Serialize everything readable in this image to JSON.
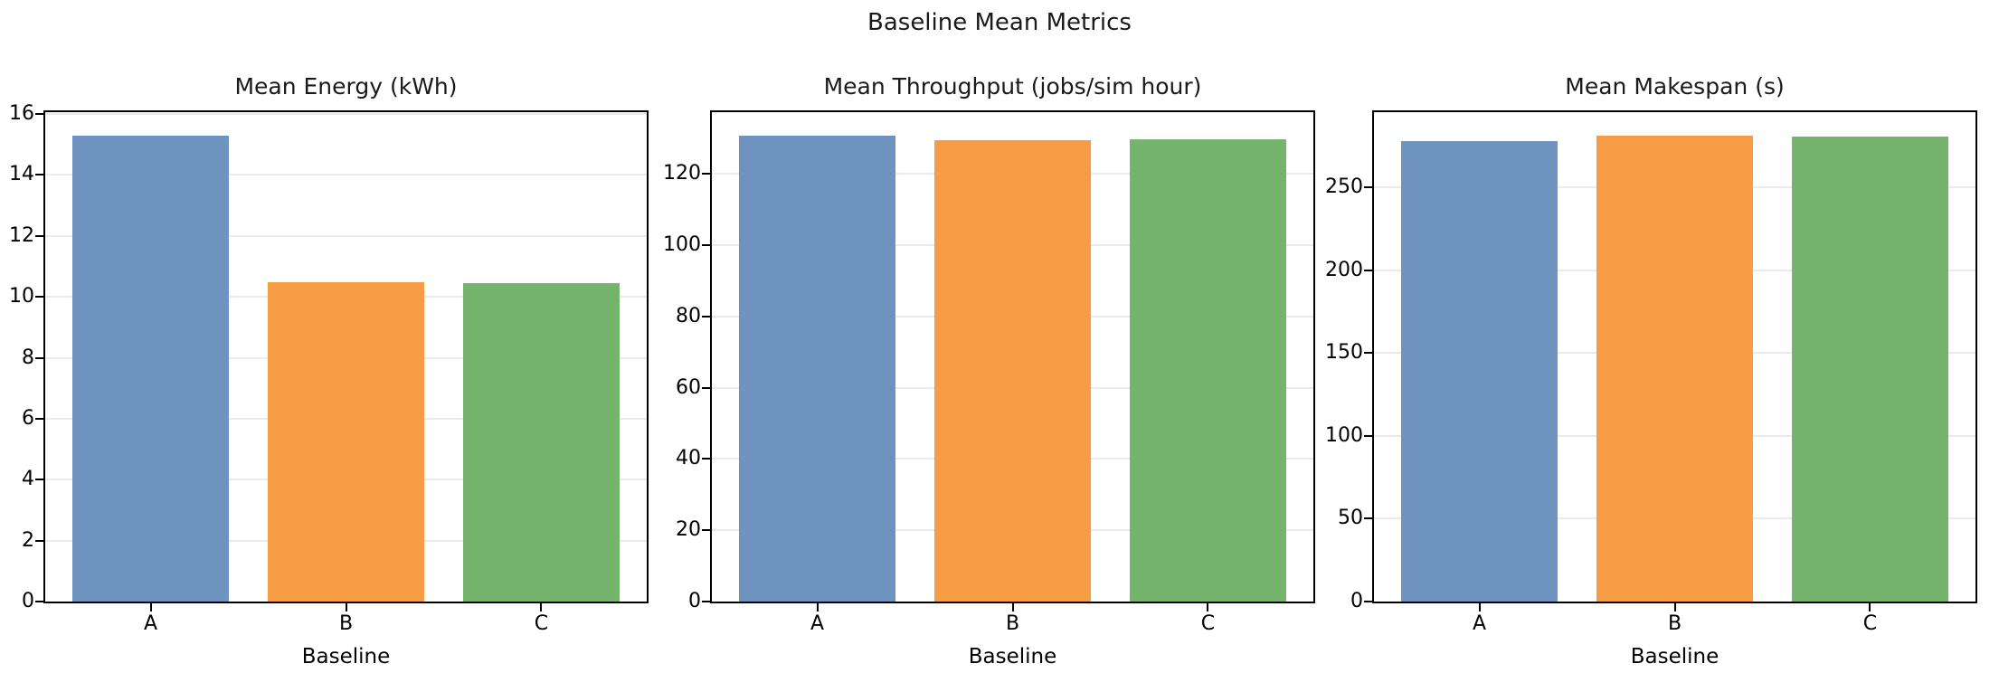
{
  "figure": {
    "suptitle": "Baseline Mean Metrics",
    "background": "#ffffff",
    "text_color": "#1a1a1a",
    "spine_color": "#000000",
    "grid_color": "#ebebeb",
    "tick_color": "#000000",
    "bar_colors": [
      "#6E93BE",
      "#F59C45",
      "#74B46D"
    ],
    "bar_color_names": [
      "muted-blue",
      "muted-orange",
      "muted-green"
    ]
  },
  "chart_data": [
    {
      "type": "bar",
      "title": "Mean Energy (kWh)",
      "xlabel": "Baseline",
      "categories": [
        "A",
        "B",
        "C"
      ],
      "values": [
        15.3,
        10.47,
        10.45
      ],
      "ylim": [
        0,
        16.06
      ],
      "yticks": [
        0,
        2,
        4,
        6,
        8,
        10,
        12,
        14,
        16
      ],
      "grid": "y-only",
      "legend": "none"
    },
    {
      "type": "bar",
      "title": "Mean Throughput (jobs/sim hour)",
      "xlabel": "Baseline",
      "categories": [
        "A",
        "B",
        "C"
      ],
      "values": [
        130.8,
        129.4,
        129.8
      ],
      "ylim": [
        0,
        137.3
      ],
      "yticks": [
        0,
        20,
        40,
        60,
        80,
        100,
        120
      ],
      "grid": "y-only",
      "legend": "none"
    },
    {
      "type": "bar",
      "title": "Mean Makespan (s)",
      "xlabel": "Baseline",
      "categories": [
        "A",
        "B",
        "C"
      ],
      "values": [
        277.9,
        281.4,
        280.7
      ],
      "ylim": [
        0,
        295.5
      ],
      "yticks": [
        0,
        50,
        100,
        150,
        200,
        250
      ],
      "grid": "y-only",
      "legend": "none"
    }
  ]
}
